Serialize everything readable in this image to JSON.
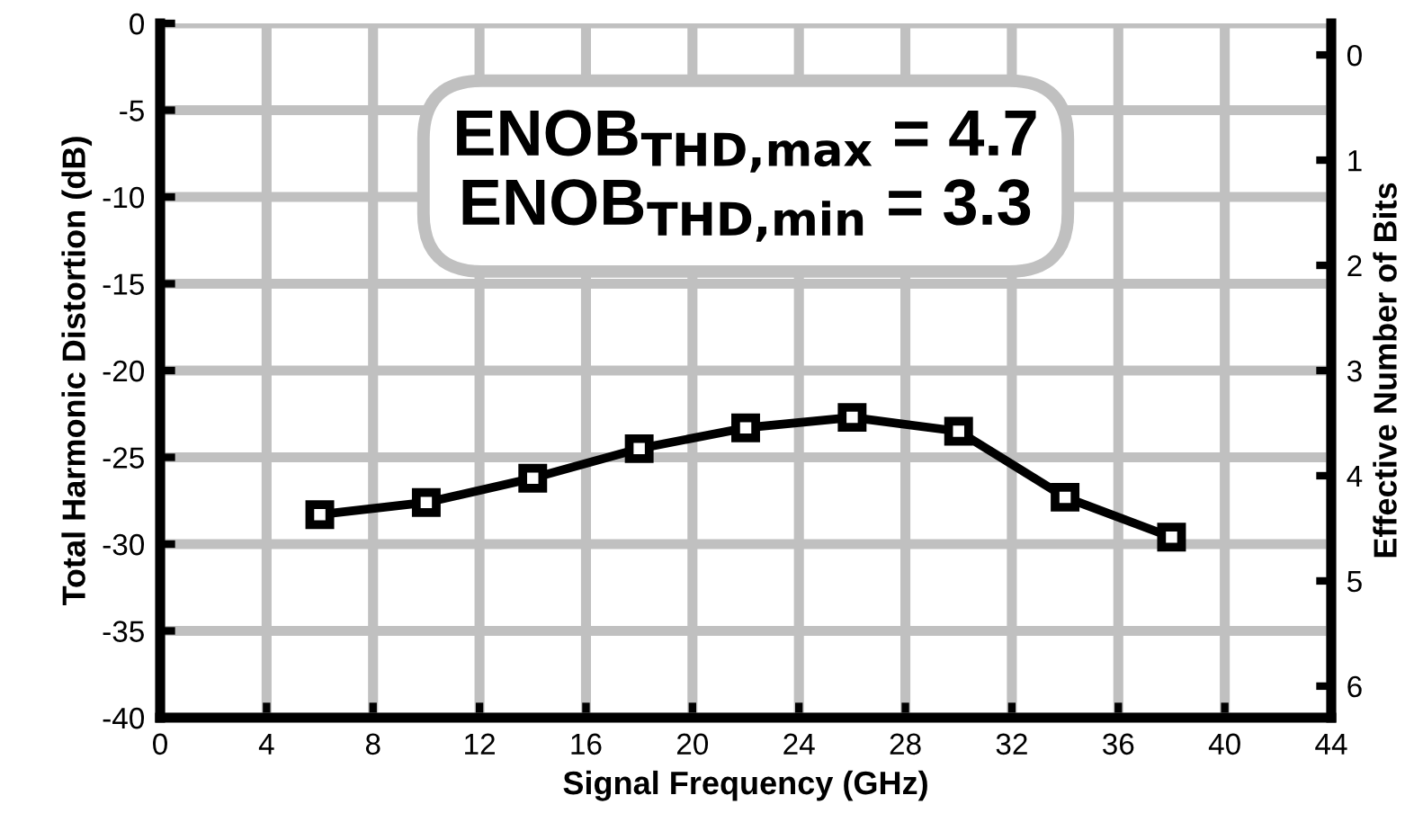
{
  "chart_data": {
    "type": "line",
    "xlabel": "Signal Frequency (GHz)",
    "ylabel": "Total Harmonic Distortion (dB)",
    "y2label": "Effective Number of Bits",
    "x": [
      6,
      10,
      14,
      18,
      22,
      26,
      30,
      34,
      38
    ],
    "series": [
      {
        "color": "#000000",
        "values": [
          -28.3,
          -27.6,
          -26.2,
          -24.5,
          -23.3,
          -22.7,
          -23.5,
          -27.3,
          -29.6
        ]
      }
    ],
    "xlim": [
      0,
      44
    ],
    "xticks": [
      0,
      4,
      8,
      12,
      16,
      20,
      24,
      28,
      32,
      36,
      40,
      44
    ],
    "ylim": [
      -40,
      0
    ],
    "yticks": [
      -40,
      -35,
      -30,
      -25,
      -20,
      -15,
      -10,
      -5,
      0
    ],
    "y2lim": [
      6.3,
      -0.3
    ],
    "y2ticks": [
      0,
      1,
      2,
      3,
      4,
      5,
      6
    ],
    "grid": true,
    "marker": "square",
    "line_style": "solid",
    "annotations": [
      "ENOB$_{THD,max}$ = 4.7\nENOB$_{THD,min}$ = 3.3"
    ]
  }
}
